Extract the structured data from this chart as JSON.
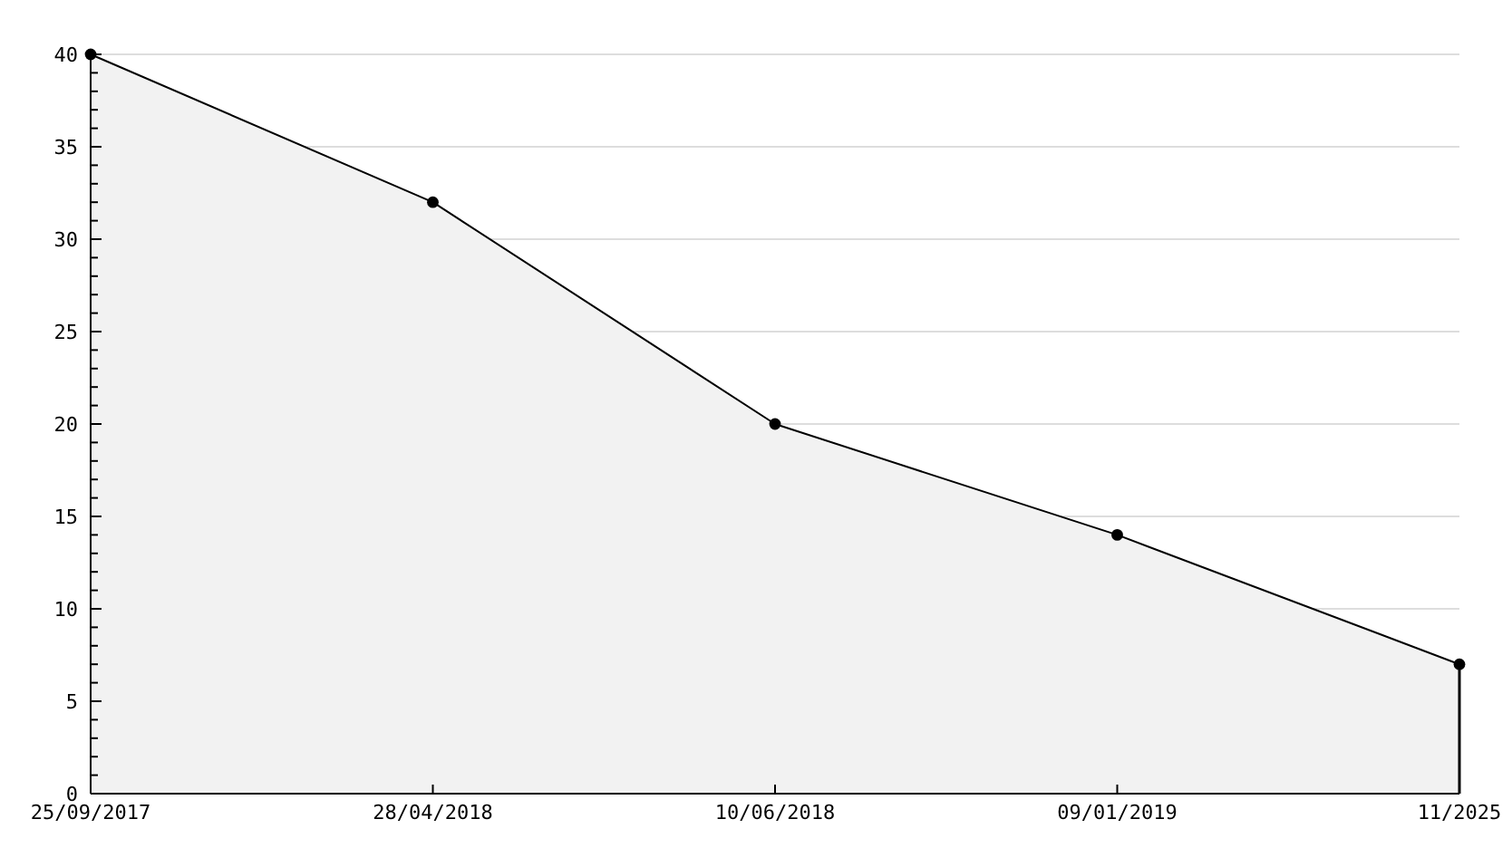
{
  "chart_data": {
    "type": "area",
    "categories": [
      "25/09/2017",
      "28/04/2018",
      "10/06/2018",
      "09/01/2019",
      "11/2025"
    ],
    "series": [
      {
        "color": "#000000",
        "values": [
          40,
          32,
          20,
          14,
          7
        ]
      }
    ],
    "ylim": [
      0,
      40
    ],
    "yticks": [
      0,
      {
        "value": 1,
        "label": null
      },
      {
        "value": 2,
        "label": null
      },
      {
        "value": 3,
        "label": null
      },
      {
        "value": 4,
        "label": null
      },
      5,
      {
        "value": 6,
        "label": null
      },
      {
        "value": 7,
        "label": null
      },
      {
        "value": 8,
        "label": null
      },
      {
        "value": 9,
        "label": null
      },
      10,
      {
        "value": 11,
        "label": null
      },
      {
        "value": 12,
        "label": null
      },
      {
        "value": 13,
        "label": null
      },
      {
        "value": 14,
        "label": null
      },
      15,
      {
        "value": 16,
        "label": null
      },
      {
        "value": 17,
        "label": null
      },
      {
        "value": 18,
        "label": null
      },
      {
        "value": 19,
        "label": null
      },
      20,
      {
        "value": 21,
        "label": null
      },
      {
        "value": 22,
        "label": null
      },
      {
        "value": 23,
        "label": null
      },
      {
        "value": 24,
        "label": null
      },
      25,
      {
        "value": 26,
        "label": null
      },
      {
        "value": 27,
        "label": null
      },
      {
        "value": 28,
        "label": null
      },
      {
        "value": 29,
        "label": null
      },
      30,
      {
        "value": 31,
        "label": null
      },
      {
        "value": 32,
        "label": null
      },
      {
        "value": 33,
        "label": null
      },
      {
        "value": 34,
        "label": null
      },
      35,
      {
        "value": 36,
        "label": null
      },
      {
        "value": 37,
        "label": null
      },
      {
        "value": 38,
        "label": null
      },
      {
        "value": 39,
        "label": null
      },
      40
    ],
    "grid": "y",
    "marker": "circle"
  }
}
